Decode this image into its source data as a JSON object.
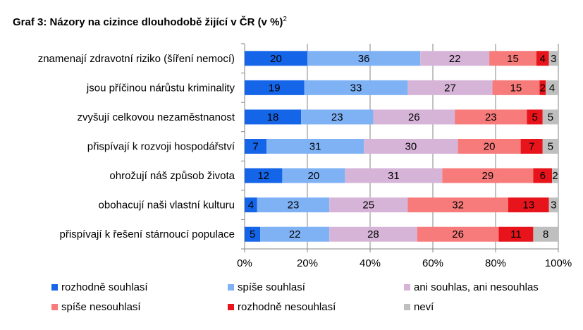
{
  "title": {
    "text": "Graf 3: Názory na cizince dlouhodobě žijící v ČR (v %)",
    "footnote": "2"
  },
  "chart_data": {
    "type": "bar",
    "orientation": "horizontal",
    "stacked": "percent",
    "categories": [
      "znamenají zdravotní riziko (šíření nemocí)",
      "jsou příčinou nárůstu kriminality",
      "zvyšují celkovou nezaměstnanost",
      "přispívají k rozvoji hospodářství",
      "ohrožují náš způsob života",
      "obohacují naši vlastní kulturu",
      "přispívají k řešení stárnoucí populace"
    ],
    "series": [
      {
        "name": "rozhodně souhlasí",
        "color": "#1565e8",
        "values": [
          20,
          19,
          18,
          7,
          12,
          4,
          5
        ]
      },
      {
        "name": "spíše souhlasí",
        "color": "#7fb2f5",
        "values": [
          36,
          33,
          23,
          31,
          20,
          23,
          22
        ]
      },
      {
        "name": "ani souhlas, ani nesouhlas",
        "color": "#d6b4d8",
        "values": [
          22,
          27,
          26,
          30,
          31,
          25,
          28
        ]
      },
      {
        "name": "spíše nesouhlasí",
        "color": "#f77b7b",
        "values": [
          15,
          15,
          23,
          20,
          29,
          32,
          26
        ]
      },
      {
        "name": "rozhodně nesouhlasí",
        "color": "#e8141c",
        "values": [
          4,
          2,
          5,
          7,
          6,
          13,
          11
        ]
      },
      {
        "name": "neví",
        "color": "#bfbfbf",
        "values": [
          3,
          4,
          5,
          5,
          2,
          3,
          8
        ]
      }
    ],
    "x_ticks": [
      "0%",
      "20%",
      "40%",
      "60%",
      "80%",
      "100%"
    ],
    "xlim": [
      0,
      100
    ],
    "grid": true,
    "legend_position": "bottom"
  }
}
